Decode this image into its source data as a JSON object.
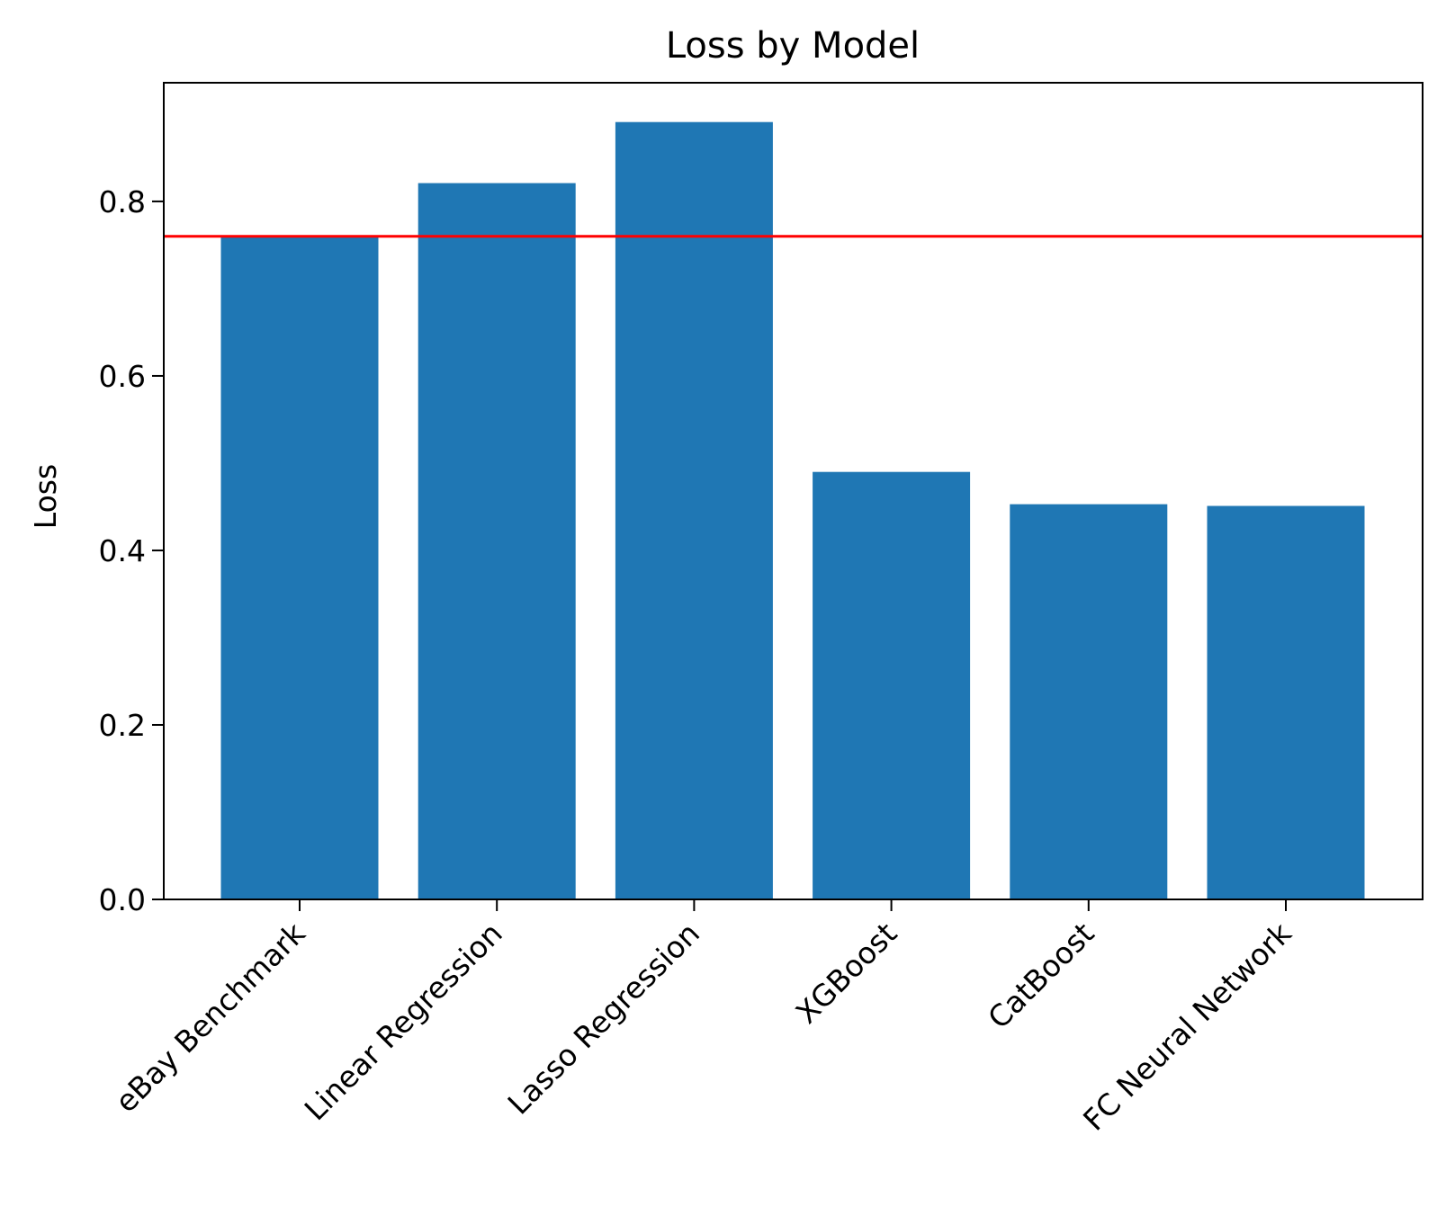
{
  "chart_data": {
    "type": "bar",
    "title": "Loss by Model",
    "xlabel": "",
    "ylabel": "Loss",
    "categories": [
      "eBay Benchmark",
      "Linear Regression",
      "Lasso Regression",
      "XGBoost",
      "CatBoost",
      "FC Neural Network"
    ],
    "values": [
      0.76,
      0.821,
      0.891,
      0.49,
      0.453,
      0.451
    ],
    "ylim": [
      0,
      0.936
    ],
    "yticks": [
      0.0,
      0.2,
      0.4,
      0.6,
      0.8
    ],
    "ytick_labels": [
      "0.0",
      "0.2",
      "0.4",
      "0.6",
      "0.8"
    ],
    "reference_line": {
      "value": 0.76,
      "color": "#ff0000"
    },
    "grid": false,
    "legend": "none",
    "colors": {
      "bar": "#1f77b4",
      "axis": "#000000"
    }
  }
}
